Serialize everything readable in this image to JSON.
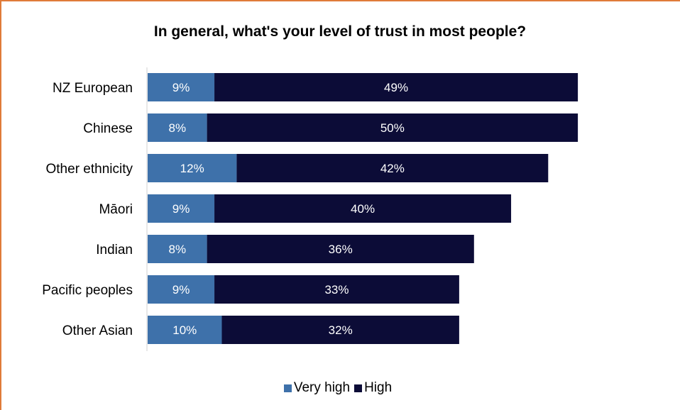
{
  "chart_data": {
    "type": "bar",
    "orientation": "horizontal",
    "stacked": true,
    "title": "In general, what's your level of trust in most people?",
    "categories": [
      "NZ European",
      "Chinese",
      "Other ethnicity",
      "Māori",
      "Indian",
      "Pacific peoples",
      "Other Asian"
    ],
    "series": [
      {
        "name": "Very high",
        "color": "#3e71aa",
        "values": [
          9,
          8,
          12,
          9,
          8,
          9,
          10
        ],
        "labels": [
          "9%",
          "8%",
          "12%",
          "9%",
          "8%",
          "9%",
          "10%"
        ]
      },
      {
        "name": "High",
        "color": "#0c0c37",
        "values": [
          49,
          50,
          42,
          40,
          36,
          33,
          32
        ],
        "labels": [
          "49%",
          "50%",
          "42%",
          "40%",
          "36%",
          "33%",
          "32%"
        ]
      }
    ],
    "xlim": [
      0,
      60
    ],
    "grid": false,
    "legend_position": "bottom"
  },
  "colors": {
    "accent_border": "#e07b39"
  }
}
